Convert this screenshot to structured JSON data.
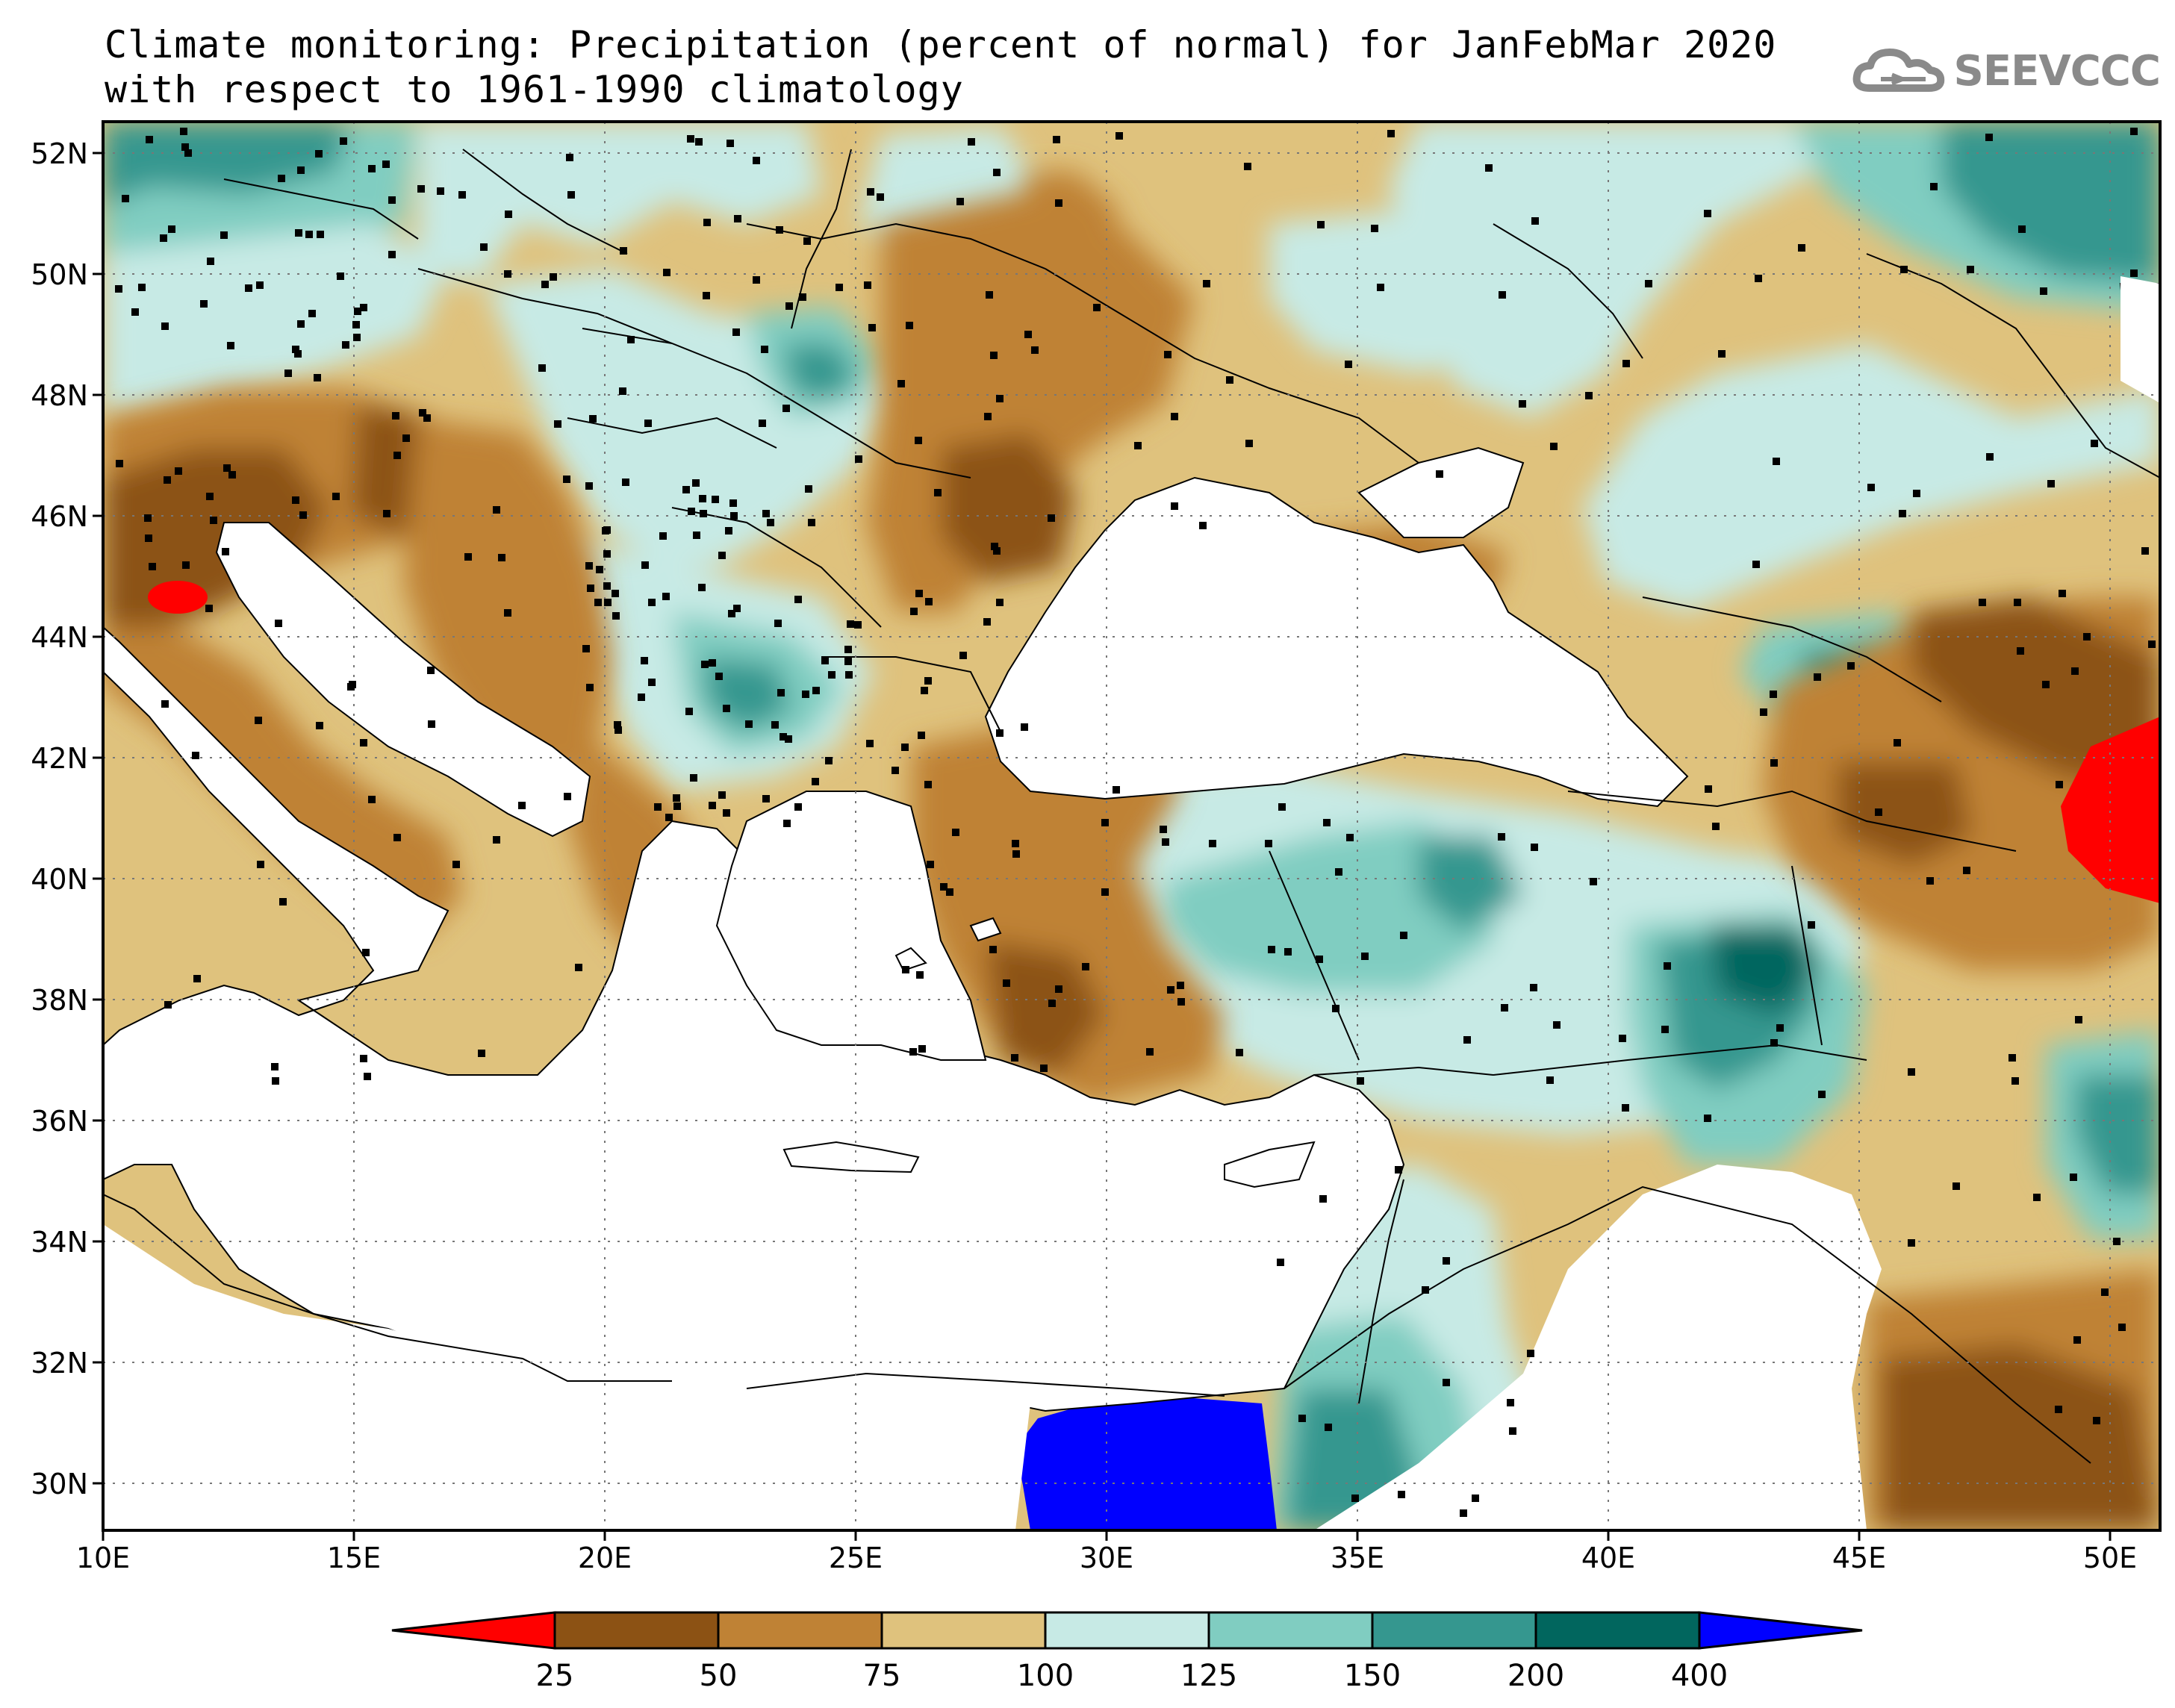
{
  "title": {
    "line1": "Climate monitoring: Precipitation (percent of normal) for JanFebMar 2020",
    "line2": "with respect to 1961-1990 climatology"
  },
  "logo": {
    "text": "SEEVCCC",
    "icon": "cloud-icon"
  },
  "axes": {
    "lon_labels": [
      "10E",
      "15E",
      "20E",
      "25E",
      "30E",
      "35E",
      "40E",
      "45E",
      "50E"
    ],
    "lat_labels": [
      "52N",
      "50N",
      "48N",
      "46N",
      "44N",
      "42N",
      "40N",
      "38N",
      "36N",
      "34N",
      "32N",
      "30N"
    ]
  },
  "legend": {
    "thresholds": [
      "25",
      "50",
      "75",
      "100",
      "125",
      "150",
      "200",
      "400"
    ],
    "colors": [
      "#ff0000",
      "#8c5214",
      "#bf8235",
      "#dfc27d",
      "#c7eae5",
      "#80cdc1",
      "#35978f",
      "#01665e",
      "#0000ff"
    ]
  },
  "colors": {
    "very_dry": "#ff0000",
    "dry1": "#8c5214",
    "dry2": "#bf8235",
    "dry3": "#dfc27d",
    "wet1": "#c7eae5",
    "wet2": "#80cdc1",
    "wet3": "#35978f",
    "wet4": "#01665e",
    "very_wet": "#0000ff",
    "sea": "#ffffff"
  }
}
